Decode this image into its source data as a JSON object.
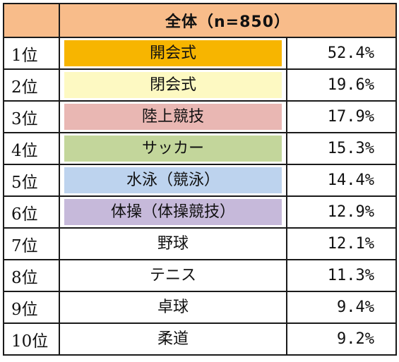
{
  "header": {
    "title": "全体（n=850）"
  },
  "rows": [
    {
      "rank": "1位",
      "name": "開会式",
      "percent": "52.4%",
      "color": "#f7b500"
    },
    {
      "rank": "2位",
      "name": "閉会式",
      "percent": "19.6%",
      "color": "#fdf9c2"
    },
    {
      "rank": "3位",
      "name": "陸上競技",
      "percent": "17.9%",
      "color": "#e9b7b3"
    },
    {
      "rank": "4位",
      "name": "サッカー",
      "percent": "15.3%",
      "color": "#c3d69b"
    },
    {
      "rank": "5位",
      "name": "水泳（競泳）",
      "percent": "14.4%",
      "color": "#bdd3ee"
    },
    {
      "rank": "6位",
      "name": "体操（体操競技）",
      "percent": "12.9%",
      "color": "#c6b9da"
    },
    {
      "rank": "7位",
      "name": "野球",
      "percent": "12.1%",
      "color": "#ffffff"
    },
    {
      "rank": "8位",
      "name": "テニス",
      "percent": "11.3%",
      "color": "#ffffff"
    },
    {
      "rank": "9位",
      "name": "卓球",
      "percent": "9.4%",
      "color": "#ffffff"
    },
    {
      "rank": "10位",
      "name": "柔道",
      "percent": "9.2%",
      "color": "#ffffff"
    }
  ]
}
